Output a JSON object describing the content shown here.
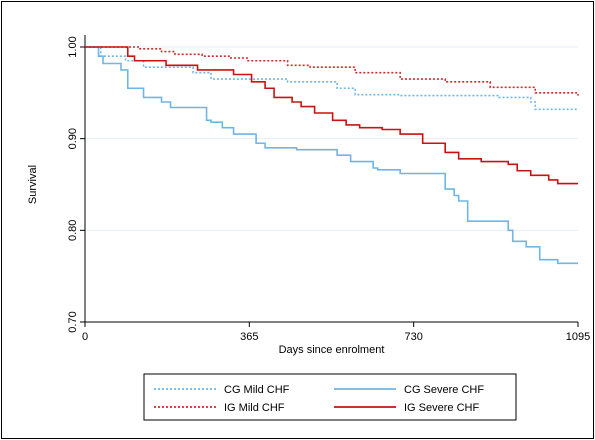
{
  "chart_data": {
    "type": "line",
    "title": "",
    "xlabel": "Days since enrolment",
    "ylabel": "Survival",
    "xlim": [
      0,
      1095
    ],
    "ylim": [
      0.7,
      1.0
    ],
    "x_ticks": [
      0,
      365,
      730,
      1095
    ],
    "x_tick_labels": [
      "0",
      "365",
      "730",
      "1095"
    ],
    "y_ticks": [
      0.7,
      0.8,
      0.9,
      1.0
    ],
    "y_tick_labels": [
      "0.70",
      "0.80",
      "0.90",
      "1.00"
    ],
    "grid": "horizontal",
    "step": true,
    "legend_position": "bottom",
    "series": [
      {
        "name": "CG Mild CHF",
        "color": "#6fb6e6",
        "dash": "dotted",
        "points": [
          [
            0,
            1.0
          ],
          [
            35,
            0.99
          ],
          [
            90,
            0.985
          ],
          [
            130,
            0.978
          ],
          [
            240,
            0.972
          ],
          [
            280,
            0.965
          ],
          [
            450,
            0.962
          ],
          [
            560,
            0.955
          ],
          [
            600,
            0.948
          ],
          [
            700,
            0.947
          ],
          [
            920,
            0.945
          ],
          [
            990,
            0.94
          ],
          [
            1000,
            0.932
          ],
          [
            1095,
            0.932
          ]
        ]
      },
      {
        "name": "CG Severe CHF",
        "color": "#6fb6e6",
        "dash": "solid",
        "points": [
          [
            0,
            1.0
          ],
          [
            30,
            0.99
          ],
          [
            40,
            0.982
          ],
          [
            80,
            0.975
          ],
          [
            95,
            0.955
          ],
          [
            130,
            0.945
          ],
          [
            170,
            0.94
          ],
          [
            190,
            0.934
          ],
          [
            270,
            0.92
          ],
          [
            280,
            0.918
          ],
          [
            305,
            0.912
          ],
          [
            330,
            0.905
          ],
          [
            380,
            0.895
          ],
          [
            400,
            0.89
          ],
          [
            470,
            0.888
          ],
          [
            560,
            0.882
          ],
          [
            590,
            0.875
          ],
          [
            640,
            0.868
          ],
          [
            650,
            0.866
          ],
          [
            700,
            0.862
          ],
          [
            755,
            0.862
          ],
          [
            800,
            0.845
          ],
          [
            820,
            0.838
          ],
          [
            830,
            0.832
          ],
          [
            850,
            0.81
          ],
          [
            880,
            0.81
          ],
          [
            940,
            0.8
          ],
          [
            950,
            0.788
          ],
          [
            980,
            0.782
          ],
          [
            1010,
            0.768
          ],
          [
            1050,
            0.764
          ],
          [
            1095,
            0.764
          ]
        ]
      },
      {
        "name": "IG Mild CHF",
        "color": "#d42a2a",
        "dash": "dotted",
        "points": [
          [
            0,
            1.0
          ],
          [
            60,
            1.0
          ],
          [
            120,
            0.998
          ],
          [
            170,
            0.995
          ],
          [
            200,
            0.992
          ],
          [
            260,
            0.99
          ],
          [
            320,
            0.988
          ],
          [
            360,
            0.985
          ],
          [
            450,
            0.98
          ],
          [
            500,
            0.978
          ],
          [
            600,
            0.972
          ],
          [
            700,
            0.965
          ],
          [
            800,
            0.962
          ],
          [
            900,
            0.956
          ],
          [
            1000,
            0.95
          ],
          [
            1080,
            0.95
          ],
          [
            1095,
            0.947
          ]
        ]
      },
      {
        "name": "IG Severe CHF",
        "color": "#cc1111",
        "dash": "solid",
        "points": [
          [
            0,
            1.0
          ],
          [
            50,
            1.0
          ],
          [
            95,
            0.99
          ],
          [
            110,
            0.985
          ],
          [
            180,
            0.98
          ],
          [
            250,
            0.975
          ],
          [
            330,
            0.97
          ],
          [
            370,
            0.962
          ],
          [
            400,
            0.955
          ],
          [
            420,
            0.945
          ],
          [
            460,
            0.94
          ],
          [
            480,
            0.935
          ],
          [
            510,
            0.928
          ],
          [
            550,
            0.92
          ],
          [
            580,
            0.915
          ],
          [
            610,
            0.912
          ],
          [
            660,
            0.91
          ],
          [
            700,
            0.905
          ],
          [
            750,
            0.895
          ],
          [
            800,
            0.885
          ],
          [
            830,
            0.878
          ],
          [
            880,
            0.875
          ],
          [
            940,
            0.872
          ],
          [
            960,
            0.865
          ],
          [
            990,
            0.86
          ],
          [
            1030,
            0.855
          ],
          [
            1050,
            0.851
          ],
          [
            1095,
            0.851
          ]
        ]
      }
    ],
    "legend": [
      {
        "name": "CG Mild CHF",
        "color": "#6fb6e6",
        "dash": "dotted"
      },
      {
        "name": "CG Severe CHF",
        "color": "#6fb6e6",
        "dash": "solid"
      },
      {
        "name": "IG Mild CHF",
        "color": "#d42a2a",
        "dash": "dotted"
      },
      {
        "name": "IG Severe CHF",
        "color": "#cc1111",
        "dash": "solid"
      }
    ]
  }
}
